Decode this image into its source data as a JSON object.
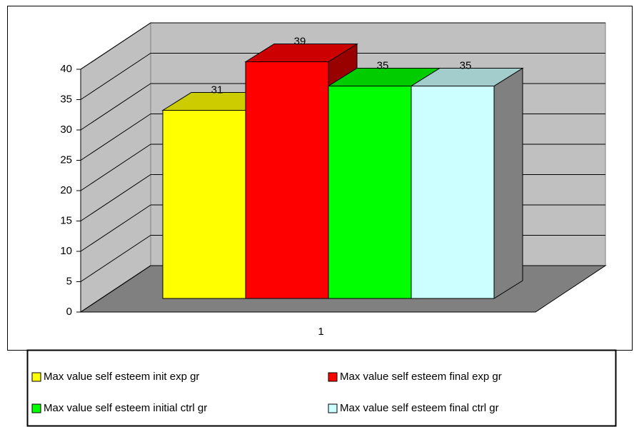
{
  "chart_data": {
    "type": "bar3d",
    "categories": [
      "1"
    ],
    "series": [
      {
        "name": "Max value self esteem init exp gr",
        "color": "#ffff00",
        "values": [
          31
        ]
      },
      {
        "name": "Max value self esteem final exp gr",
        "color": "#ff0000",
        "values": [
          39
        ]
      },
      {
        "name": "Max value self esteem initial ctrl gr",
        "color": "#00ff00",
        "values": [
          35
        ]
      },
      {
        "name": "Max value self esteem final ctrl gr",
        "color": "#ccffff",
        "values": [
          35
        ]
      }
    ],
    "ylim": [
      0,
      40
    ],
    "yticks": [
      0,
      5,
      10,
      15,
      20,
      25,
      30,
      35,
      40
    ],
    "grid": true,
    "legend": "bottom"
  }
}
